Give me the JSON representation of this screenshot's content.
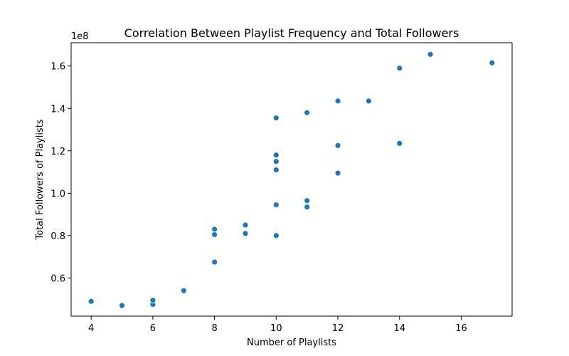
{
  "chart_data": {
    "type": "scatter",
    "title": "Correlation Between Playlist Frequency and Total Followers",
    "xlabel": "Number of Playlists",
    "ylabel": "Total Followers of Playlists",
    "y_offset_label": "1e8",
    "xlim": [
      3.35,
      17.65
    ],
    "ylim": [
      0.42,
      1.71
    ],
    "x_ticks": [
      4,
      6,
      8,
      10,
      12,
      14,
      16
    ],
    "x_tick_labels": [
      "4",
      "6",
      "8",
      "10",
      "12",
      "14",
      "16"
    ],
    "y_ticks": [
      0.6,
      0.8,
      1.0,
      1.2,
      1.4,
      1.6
    ],
    "y_tick_labels": [
      "0.6",
      "0.8",
      "1.0",
      "1.2",
      "1.4",
      "1.6"
    ],
    "grid": false,
    "legend": "none",
    "marker_color": "#1f77b4",
    "points": [
      {
        "x": 4,
        "y": 0.49
      },
      {
        "x": 5,
        "y": 0.47
      },
      {
        "x": 6,
        "y": 0.475
      },
      {
        "x": 6,
        "y": 0.495
      },
      {
        "x": 7,
        "y": 0.54
      },
      {
        "x": 8,
        "y": 0.675
      },
      {
        "x": 8,
        "y": 0.805
      },
      {
        "x": 8,
        "y": 0.83
      },
      {
        "x": 9,
        "y": 0.81
      },
      {
        "x": 9,
        "y": 0.85
      },
      {
        "x": 10,
        "y": 0.8
      },
      {
        "x": 10,
        "y": 0.945
      },
      {
        "x": 10,
        "y": 1.11
      },
      {
        "x": 10,
        "y": 1.15
      },
      {
        "x": 10,
        "y": 1.18
      },
      {
        "x": 10,
        "y": 1.355
      },
      {
        "x": 11,
        "y": 0.935
      },
      {
        "x": 11,
        "y": 0.965
      },
      {
        "x": 11,
        "y": 1.38
      },
      {
        "x": 12,
        "y": 1.095
      },
      {
        "x": 12,
        "y": 1.225
      },
      {
        "x": 12,
        "y": 1.435
      },
      {
        "x": 13,
        "y": 1.435
      },
      {
        "x": 14,
        "y": 1.235
      },
      {
        "x": 14,
        "y": 1.59
      },
      {
        "x": 15,
        "y": 1.655
      },
      {
        "x": 17,
        "y": 1.615
      }
    ]
  }
}
